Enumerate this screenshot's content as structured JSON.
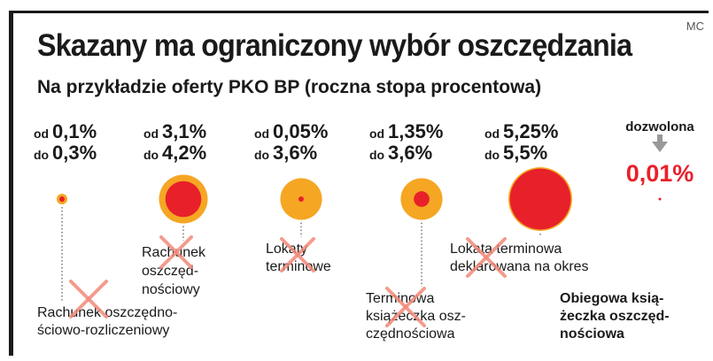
{
  "header": {
    "title": "Skazany ma ograniczony wybór oszczędzania",
    "subtitle": "Na przykładzie oferty PKO BP (roczna stopa procentowa)",
    "credit": "MC"
  },
  "chart_data": {
    "type": "bubble",
    "title": "Skazany ma ograniczony wybór oszczędzania",
    "subtitle": "Na przykładzie oferty PKO BP (roczna stopa procentowa)",
    "unit": "%",
    "colors": {
      "max_rate": "#f5a623",
      "min_rate": "#e8202a",
      "cross": "#f28a7a"
    },
    "range_words": {
      "from": "od",
      "to": "do"
    },
    "products": [
      {
        "name_lines": [
          "Rachunek oszczędno-",
          "ściowo-rozliczeniowy"
        ],
        "min": 0.1,
        "max": 0.3,
        "min_text": "0,1%",
        "max_text": "0,3%",
        "crossed": true,
        "bold": false
      },
      {
        "name_lines": [
          "Rachunek",
          "oszczęd-",
          "nościowy"
        ],
        "min": 3.1,
        "max": 4.2,
        "min_text": "3,1%",
        "max_text": "4,2%",
        "crossed": true,
        "bold": false
      },
      {
        "name_lines": [
          "Lokaty",
          "terminowe"
        ],
        "min": 0.05,
        "max": 3.6,
        "min_text": "0,05%",
        "max_text": "3,6%",
        "crossed": true,
        "bold": false
      },
      {
        "name_lines": [
          "Terminowa",
          "książeczka osz-",
          "czędnościowa"
        ],
        "min": 1.35,
        "max": 3.6,
        "min_text": "1,35%",
        "max_text": "3,6%",
        "crossed": true,
        "bold": false
      },
      {
        "name_lines": [
          "Lokata terminowa",
          "deklarowana na okres"
        ],
        "min": 5.25,
        "max": 5.5,
        "min_text": "5,25%",
        "max_text": "5,5%",
        "crossed": true,
        "bold": false
      },
      {
        "name_lines": [
          "Obiegowa ksią-",
          "żeczka oszczęd-",
          "nościowa"
        ],
        "allowed_label": "dozwolona",
        "value": 0.01,
        "value_text": "0,01%",
        "crossed": false,
        "bold": true
      }
    ]
  }
}
